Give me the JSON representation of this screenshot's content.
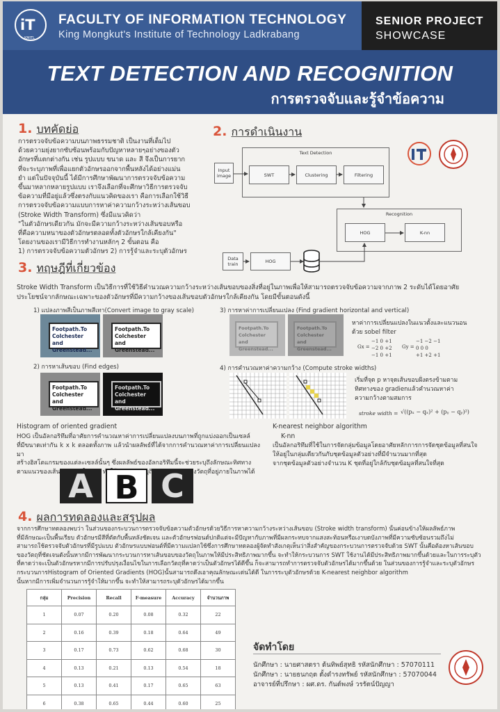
{
  "header": {
    "faculty_title": "FACULTY OF INFORMATION TECHNOLOGY",
    "institute": "King Mongkut's Institute of Technology Ladkrabang",
    "logo_text": "iT",
    "logo_sub": "KMITL",
    "badge_line1": "SENIOR PROJECT",
    "badge_line2": "SHOWCASE"
  },
  "title": {
    "english": "TEXT DETECTION AND RECOGNITION",
    "thai": "การตรวจจับและรู้จำข้อความ"
  },
  "sections": {
    "abstract": {
      "number": "1.",
      "label": "บทคัดย่อ",
      "lines": [
        "การตรวจจับข้อความบนภาพธรรมชาติ เป็นงานที่เต็มไป",
        "ด้วยความยุ่งยากซับซ้อนพร้อมกับปัญหาหลายๆอย่างของตัว",
        "อักษรที่แตกต่างกัน เช่น รูปแบบ ขนาด และ สี จึงเป็นการยาก",
        "ที่จะระบุภาพที่เพื่อแยกตัวอักษรออกจากพื้นหลังได้อย่างแม่น",
        "ยำ แต่ในปัจจุบันนี้ ได้มีการศึกษาพัฒนาการตรวจจับข้อความ",
        "ขึ้นมาหลากหลายรูปแบบ เราจึงเลือกที่จะศึกษาวิธีการตรวจจับ",
        "ข้อความที่มีอยู่แล้วซึ่งตรงกับแนวคิดของเรา คือการเลือกใช้วิธี",
        "การตรวจจับข้อความแบบการหาค่าความกว้างระหว่างเส้นขอบ",
        "(Stroke Width Transform) ซึ่งมีแนวคิดว่า",
        "\"ในตัวอักษรเดียวกัน มักจะมีความกว้างระหว่างเส้นขอบหรือ",
        "ที่คือความหนาของตัวอักษรตลอดทั้งตัวอักษรใกล้เคียงกัน\"",
        "โดยงานของเรามีวิธีการทำงานหลักๆ 2 ขั้นตอน คือ",
        "1) การตรวจจับข้อความตัวอักษร 2) การรู้จำและระบุตัวอักษร"
      ]
    },
    "method": {
      "number": "2.",
      "label": "การดำเนินงาน",
      "diagram": {
        "text_detection": "Text Detection",
        "input_image": "Input image",
        "swt": "SWT",
        "clustering": "Clustering",
        "filtering": "Filtering",
        "recognition": "Recognition",
        "hog": "HOG",
        "knn": "K-nn",
        "data_train": "Data train",
        "hog2": "HOG"
      }
    },
    "theory": {
      "number": "3.",
      "label": "ทฤษฎีที่เกี่ยวข้อง",
      "swt_intro_line1": "Stroke Width Transform        เป็นวิธีการที่ใช้วิธีคำนวณความกว้างระหว่างเส้นขอบของสิ่งที่อยู่ในภาพเพื่อให้สามารถตรวจจับข้อความจากภาพ 2 ระดับได้โดยอาศัย",
      "swt_intro_line2": "ประโยชน์จากลักษณะเฉพาะของตัวอักษรที่มีความกว้างของเส้นขอบตัวอักษรใกล้เคียงกัน โดยมีขั้นตอนดังนี้",
      "step1": "1) แปลงภาพสีเป็นภาพสีเทา(Convert image to gray scale)",
      "step2": "2) การหาเส้นขอบ (Find edges)",
      "step3": "3) การหาค่าการเปลี่ยนแปลง (Find gradient horizontal and vertical)",
      "step3_desc_1": "หาค่าการเปลี่ยนแปลงในแนวตั้งและแนวนอน",
      "step3_desc_2": "ด้วย sobel filter",
      "gx_label": "Gx =",
      "gy_label": "Gy =",
      "gx_rows": [
        "−1  0  +1",
        "−2  0  +2",
        "−1  0  +1"
      ],
      "gy_rows": [
        "−1  −2  −1",
        " 0   0   0",
        "+1  +2  +1"
      ],
      "step4": "4) การคำนวณหาค่าความกว้าง (Compute stroke widths)",
      "step4_desc_1": "เริ่มที่จุด p หาจุดเส้นขอบฝั่งตรงข้ามตาม",
      "step4_desc_2": "ทิศทางของ gradienแล้วคำนวณหาค่า",
      "step4_desc_3": "ความกว้างตามสมการ",
      "stroke_formula_label": "stroke width =",
      "stroke_formula_body": "√((pₓ − qₓ)² + (pᵧ − qᵧ)²)",
      "sign_text": "Footpath.To Colchester and Greenstead...",
      "hog_title": "Histogram of oriented gradient",
      "hog_lines": [
        "HOG เป็นอัลกอริทึมที่อาศัยการคำนวณหาค่าการเปลี่ยนแปลงบนภาพที่ถูกแบ่งออกเป็นเซลล์",
        "ที่มีขนาดเท่ากัน k x k ตลอดทั้งภาพ แล้วนำผลลัพธ์ที่ได้จากการคำนวณหาค่าการเปลี่ยนแปลงมา",
        "สร้างฮิสโตแกรมของแต่ละเซลล์นั้นๆ ซึ่งผลลัพธ์ของอัลกอริทึมนี้จะช่วยระบุถึงลักษณะทิศทาง",
        "ตามแนวของเส้นขอบภายในภาพ ทำให้สามารถระบุถึงลักษณะเด่นของวัตถุที่อยู่ภายในภาพได้"
      ],
      "hog_letters": [
        "A",
        "B",
        "C"
      ],
      "knn_title": "K-nearest neighbor algorithm",
      "knn_sub": "K-nn",
      "knn_lines": [
        "เป็นอัลกอริทึมที่ใช้ในการจัดกลุ่มข้อมูลโดยอาศัยหลักการการจัดชุดข้อมูลที่สนใจ",
        "ให้อยู่ในกลุ่มเดียวกันกับชุดข้อมูลตัวอย่างที่มีจำนวนมากที่สุด",
        "จากชุดข้อมูลตัวอย่างจำนวน K ชุดที่อยู่ใกล้กับชุดข้อมูลที่สนใจที่สุด"
      ]
    },
    "results": {
      "number": "4.",
      "label": "ผลการทดลองและสรุปผล",
      "lines": [
        "จากการศึกษาทดลองพบว่า ในส่วนของกระบวนการตรวจจับข้อความตัวอักษรด้วยวิธีการหาความกว้างระหว่างเส้นขอบ (Stroke width transform) นั้นค่อนข้างให้ผลลัพธ์ภาพ",
        "ที่มีลักษณะเป็นพื้นเรียบ ตัวอักษรมีสีที่ตัดกับพื้นหลังชัดเจน และตัวอักษรฟอนต์ปกติแต่จะมีปัญหากับภาพที่มีผลกระทบจากแสงสะท้อนหรือเงาบดบังภาพที่มีความซับซ้อนรวมถึงไม่",
        "สามารถใช้ตรวจจับตัวอักษรที่มีรูปแบบ ตัวอักษรแบบฟอนต์ที่มีความแปลกใช้ซึ่งการศึกษาทดลองผู้จัดทำสังเกตุเห็นว่าสิ่งสำคัญของกระบวนการตรวจจับด้วย SWT นั้นคือต้องหาเส้นขอบ",
        "ของวัตถุที่ชัดเจนดังนั้นหากมีการพัฒนากระบวนการหาเส้นขอบของวัตถุในภาพให้มีประสิทธิภาพมากขึ้น จะทำให้กระบวนการ SWT ใช้งานได้มีประสิทธิภาพมากขึ้นด้วยและในการระบุตัว",
        "ที่คาดว่าจะเป็นตัวอักษรหากมีการปรับปรุงเงื่อนไขในการเลือกวัตถุที่คาดว่าเป็นตัวอักษรได้ดีขึ้น ก็จะสามารถทำการตรวจจับตัวอักษรได้มากขึ้นด้วย ในส่วนของการรู้จำและระบุตัวอักษร",
        "กระบวนการHistogram of Oriented Gradients (HOG)นั้นสามารถดึงเอาคุณลักษณะเด่นได้ดี ในการระบุตัวอักษรด้วย K-nearest neighbor algorithm",
        "นั้นหากมีการเพิ่มจำนวนการรู้จำให้มากขึ้น จะทำให้สามารถระบุตัวอักษรได้มากขึ้น"
      ],
      "table": {
        "headers": [
          "กลุ่ม",
          "Precision",
          "Recall",
          "F-measure",
          "Accuracy",
          "จำนวนภาพ"
        ],
        "rows": [
          [
            "1",
            "0.07",
            "0.20",
            "0.08",
            "0.32",
            "22"
          ],
          [
            "2",
            "0.16",
            "0.39",
            "0.18",
            "0.64",
            "49"
          ],
          [
            "3",
            "0.17",
            "0.73",
            "0.62",
            "0.68",
            "30"
          ],
          [
            "4",
            "0.13",
            "0.21",
            "0.13",
            "0.54",
            "18"
          ],
          [
            "5",
            "0.13",
            "0.41",
            "0.17",
            "0.65",
            "63"
          ],
          [
            "6",
            "0.38",
            "0.65",
            "0.44",
            "0.60",
            "25"
          ]
        ]
      }
    },
    "credits": {
      "heading": "จัดทำโดย",
      "student1": "นักศึกษา : นายศาสตรา  ต้นทิพย์สุทธิ        รหัสนักศึกษา : 57070111",
      "student2": "นักศึกษา : นายธนกฤต  ตั้งดำรงทรัพย์      รหัสนักศึกษา : 57070044",
      "advisor": "อาจารย์ที่ปรึกษา : ผศ.ดร. กันต์พงษ์  วรรัตน์ปัญญา"
    }
  },
  "colors": {
    "header_blue": "#3b5d96",
    "title_blue": "#2f4e85",
    "accent_red": "#d9543a",
    "badge_dark": "#1f1f1f"
  }
}
